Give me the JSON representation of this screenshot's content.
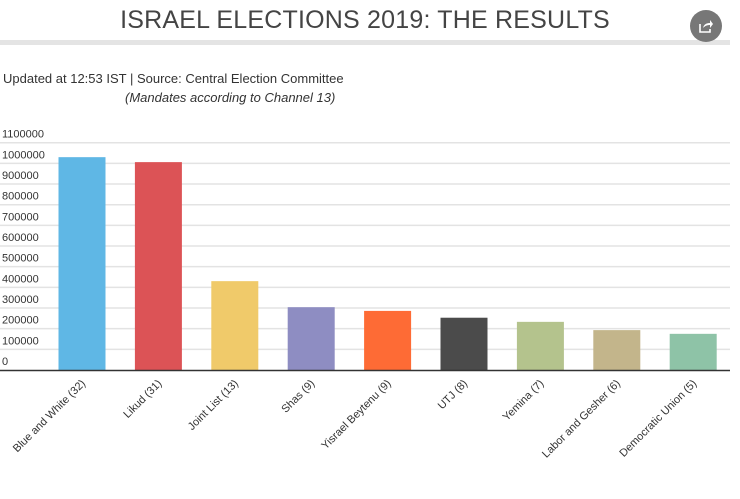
{
  "header": {
    "title": "ISRAEL ELECTIONS 2019: THE RESULTS",
    "share_icon": "share-icon"
  },
  "subtitle": "Updated at 12:53 IST | Source: Central Election Committee",
  "note": "(Mandates according to Channel 13)",
  "chart_data": {
    "type": "bar",
    "title": "ISRAEL ELECTIONS 2019: THE RESULTS",
    "xlabel": "",
    "ylabel": "",
    "ylim": [
      0,
      1100000
    ],
    "yticks": [
      "0",
      "100000",
      "200000",
      "300000",
      "400000",
      "500000",
      "600000",
      "700000",
      "800000",
      "900000",
      "1000000",
      "1100000"
    ],
    "grid": true,
    "categories": [
      "Blue and White (32)",
      "Likud (31)",
      "Joint List (13)",
      "Shas (9)",
      "Yisrael Beytenu (9)",
      "UTJ (8)",
      "Yemina (7)",
      "Labor and Gesher (6)",
      "Democratic Union (5)"
    ],
    "values": [
      1030000,
      1006000,
      430000,
      304000,
      286000,
      253000,
      233000,
      193000,
      175000
    ],
    "colors": [
      "#5fb7e5",
      "#dc5356",
      "#f0ca6a",
      "#8e8dc2",
      "#fe6b35",
      "#4b4b4b",
      "#b4c38d",
      "#c3b58b",
      "#8ec3a7"
    ]
  }
}
